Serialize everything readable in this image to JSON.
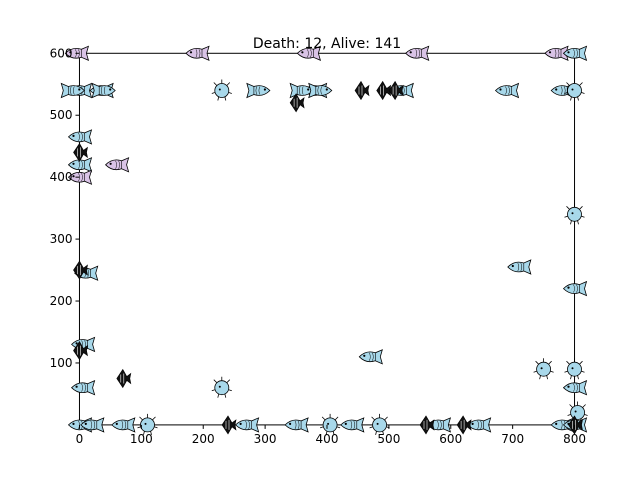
{
  "title": "Death: 12, Alive: 141",
  "chart_data": {
    "type": "scatter",
    "title": "Death: 12, Alive: 141",
    "xlabel": "",
    "ylabel": "",
    "xlim": [
      -25,
      825
    ],
    "ylim": [
      -5,
      615
    ],
    "xticks": [
      0,
      100,
      200,
      300,
      400,
      500,
      600,
      700,
      800
    ],
    "yticks": [
      100,
      200,
      300,
      400,
      500,
      600
    ],
    "tick_labels_x": [
      "0",
      "100",
      "200",
      "300",
      "400",
      "500",
      "600",
      "700",
      "800"
    ],
    "tick_labels_y": [
      "100",
      "200",
      "300",
      "400",
      "500",
      "600"
    ],
    "tank_bounds": {
      "x0": 0,
      "x1": 800,
      "y0": 0,
      "y1": 600
    },
    "grid": false,
    "colors": {
      "fish_body": "#a8d8ea",
      "fish_pink": "#d9c3e6",
      "outline": "#000000",
      "dark_fish": "#111111"
    },
    "series": [
      {
        "kind": "fish-left",
        "points": [
          [
            -5,
            600
          ],
          [
            190,
            600
          ],
          [
            370,
            600
          ],
          [
            545,
            600
          ],
          [
            770,
            600
          ],
          [
            800,
            600
          ],
          [
            0,
            540
          ],
          [
            35,
            540
          ],
          [
            380,
            540
          ],
          [
            520,
            540
          ],
          [
            690,
            540
          ],
          [
            780,
            540
          ],
          [
            0,
            465
          ],
          [
            0,
            420
          ],
          [
            60,
            420
          ],
          [
            0,
            400
          ],
          [
            10,
            245
          ],
          [
            710,
            255
          ],
          [
            800,
            220
          ],
          [
            5,
            130
          ],
          [
            470,
            110
          ],
          [
            5,
            60
          ],
          [
            800,
            60
          ],
          [
            0,
            0
          ],
          [
            20,
            0
          ],
          [
            70,
            0
          ],
          [
            270,
            0
          ],
          [
            350,
            0
          ],
          [
            440,
            0
          ],
          [
            580,
            0
          ],
          [
            645,
            0
          ],
          [
            780,
            0
          ],
          [
            800,
            0
          ]
        ]
      },
      {
        "kind": "fish-right",
        "points": [
          [
            -10,
            540
          ],
          [
            40,
            540
          ],
          [
            290,
            540
          ],
          [
            360,
            540
          ],
          [
            390,
            540
          ]
        ]
      },
      {
        "kind": "puffer",
        "points": [
          [
            230,
            540
          ],
          [
            800,
            540
          ],
          [
            800,
            340
          ],
          [
            750,
            90
          ],
          [
            800,
            90
          ],
          [
            230,
            60
          ],
          [
            110,
            0
          ],
          [
            405,
            0
          ],
          [
            485,
            0
          ],
          [
            805,
            20
          ]
        ]
      },
      {
        "kind": "angelfish",
        "points": [
          [
            455,
            540
          ],
          [
            490,
            540
          ],
          [
            510,
            540
          ],
          [
            350,
            520
          ],
          [
            0,
            440
          ],
          [
            0,
            250
          ],
          [
            70,
            75
          ],
          [
            0,
            120
          ],
          [
            240,
            0
          ],
          [
            560,
            0
          ],
          [
            620,
            0
          ],
          [
            800,
            0
          ]
        ]
      }
    ]
  }
}
